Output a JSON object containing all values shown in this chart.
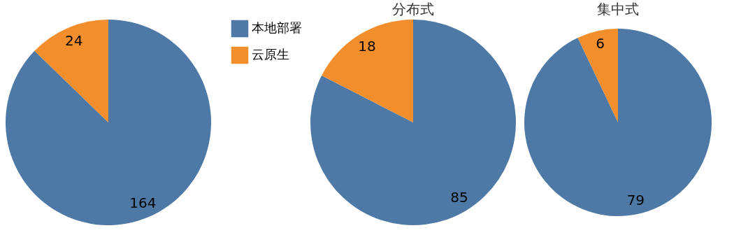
{
  "chart_data": [
    {
      "type": "pie",
      "categories": [
        "本地部署",
        "云原生"
      ],
      "values": [
        164,
        24
      ],
      "colors": [
        "#4e79a7",
        "#f28e2b"
      ],
      "data_labels": true,
      "legend": "right"
    },
    {
      "type": "pie",
      "title": "分布式",
      "categories": [
        null,
        null
      ],
      "values": [
        85,
        18
      ],
      "colors": [
        "#4e79a7",
        "#f28e2b"
      ],
      "data_labels": true
    },
    {
      "type": "pie",
      "title": "集中式",
      "categories": [
        null,
        null
      ],
      "values": [
        79,
        6
      ],
      "colors": [
        "#4e79a7",
        "#f28e2b"
      ],
      "data_labels": true
    }
  ]
}
